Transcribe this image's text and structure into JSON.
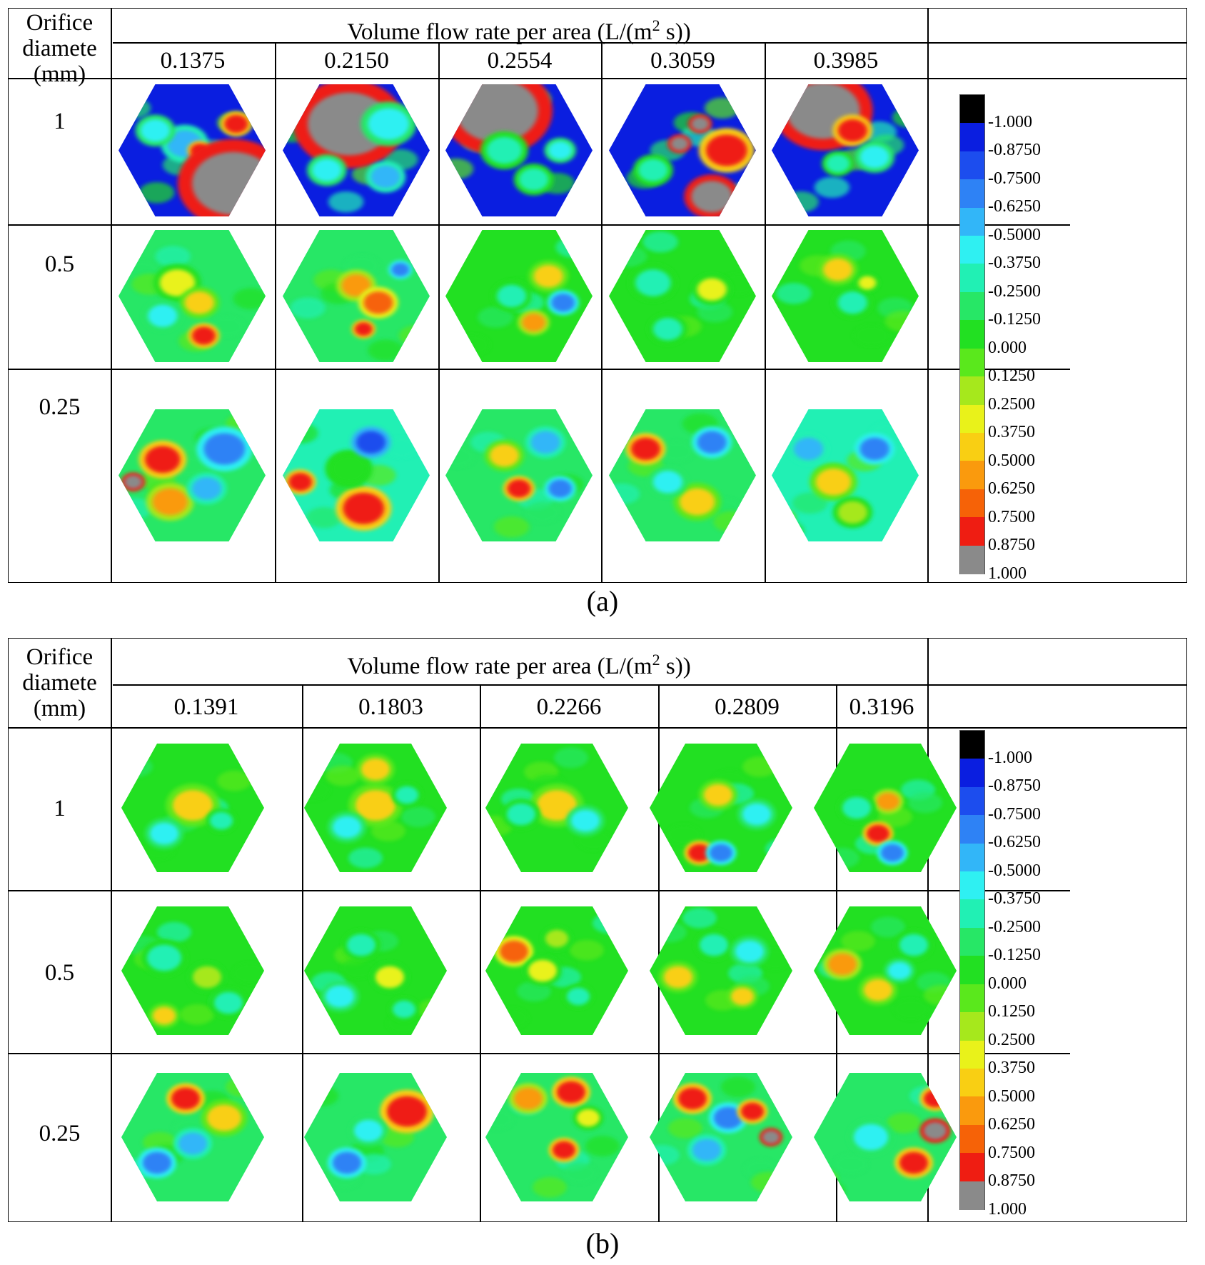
{
  "colors": {
    "scale": [
      "#000000",
      "#0a1ee0",
      "#1c4dee",
      "#2e82f5",
      "#32b6f8",
      "#2ff0f2",
      "#21f0b4",
      "#27e766",
      "#22e022",
      "#5ae81c",
      "#a6e81c",
      "#e9f21a",
      "#f9cf13",
      "#fa9a0d",
      "#f66207",
      "#ef1d12",
      "#8a8a8a"
    ],
    "border": "#000000"
  },
  "colorbar": {
    "labels": [
      "-1.000",
      "-0.8750",
      "-0.7500",
      "-0.6250",
      "-0.5000",
      "-0.3750",
      "-0.2500",
      "-0.1250",
      "0.000",
      "0.1250",
      "0.2500",
      "0.3750",
      "0.5000",
      "0.6250",
      "0.7500",
      "0.8750",
      "1.000"
    ]
  },
  "panel_a": {
    "header_left": [
      "Orifice",
      "diamete",
      "(mm)"
    ],
    "header_title_pre": "Volume flow rate per area (L/(m",
    "header_title_sup": "2",
    "header_title_post": " s))",
    "flow_rates": [
      "0.1375",
      "0.2150",
      "0.2554",
      "0.3059",
      "0.3985"
    ],
    "orifice_diameters": [
      "1",
      "0.5",
      "0.25"
    ],
    "caption": "(a)"
  },
  "panel_b": {
    "header_left": [
      "Orifice",
      "diamete",
      "(mm)"
    ],
    "header_title_pre": "Volume flow rate per area (L/(m",
    "header_title_sup": "2",
    "header_title_post": " s))",
    "flow_rates": [
      "0.1391",
      "0.1803",
      "0.2266",
      "0.2809",
      "0.3196"
    ],
    "orifice_diameters": [
      "1",
      "0.5",
      "0.25"
    ],
    "caption": "(b)"
  },
  "maps": {
    "a": [
      [
        {
          "bg": 1,
          "blobs": [
            [
              0.45,
              0.45,
              0.12,
              4
            ],
            [
              0.55,
              0.5,
              0.06,
              15
            ],
            [
              0.78,
              0.75,
              0.28,
              16
            ],
            [
              0.8,
              0.3,
              0.08,
              15
            ],
            [
              0.25,
              0.35,
              0.1,
              5
            ]
          ]
        },
        {
          "bg": 1,
          "blobs": [
            [
              0.45,
              0.3,
              0.28,
              16
            ],
            [
              0.72,
              0.3,
              0.14,
              5
            ],
            [
              0.3,
              0.65,
              0.1,
              5
            ],
            [
              0.7,
              0.7,
              0.1,
              4
            ]
          ]
        },
        {
          "bg": 1,
          "blobs": [
            [
              0.35,
              0.2,
              0.28,
              16
            ],
            [
              0.4,
              0.5,
              0.12,
              6
            ],
            [
              0.6,
              0.72,
              0.1,
              6
            ],
            [
              0.78,
              0.5,
              0.08,
              5
            ]
          ]
        },
        {
          "bg": 1,
          "blobs": [
            [
              0.62,
              0.3,
              0.06,
              16
            ],
            [
              0.48,
              0.45,
              0.06,
              16
            ],
            [
              0.8,
              0.5,
              0.14,
              15
            ],
            [
              0.7,
              0.85,
              0.14,
              16
            ],
            [
              0.3,
              0.65,
              0.1,
              6
            ]
          ]
        },
        {
          "bg": 1,
          "blobs": [
            [
              0.35,
              0.2,
              0.25,
              16
            ],
            [
              0.55,
              0.35,
              0.1,
              15
            ],
            [
              0.7,
              0.55,
              0.1,
              5
            ],
            [
              0.45,
              0.6,
              0.08,
              6
            ]
          ]
        }
      ],
      [
        {
          "bg": 7,
          "blobs": [
            [
              0.4,
              0.4,
              0.12,
              11
            ],
            [
              0.55,
              0.55,
              0.1,
              12
            ],
            [
              0.58,
              0.8,
              0.08,
              15
            ],
            [
              0.3,
              0.65,
              0.1,
              5
            ]
          ]
        },
        {
          "bg": 7,
          "blobs": [
            [
              0.5,
              0.42,
              0.1,
              13
            ],
            [
              0.65,
              0.55,
              0.1,
              14
            ],
            [
              0.55,
              0.75,
              0.06,
              15
            ],
            [
              0.8,
              0.3,
              0.06,
              3
            ]
          ]
        },
        {
          "bg": 8,
          "blobs": [
            [
              0.7,
              0.35,
              0.1,
              12
            ],
            [
              0.45,
              0.5,
              0.1,
              6
            ],
            [
              0.8,
              0.55,
              0.08,
              3
            ],
            [
              0.6,
              0.7,
              0.08,
              13
            ]
          ]
        },
        {
          "bg": 8,
          "blobs": [
            [
              0.3,
              0.4,
              0.12,
              6
            ],
            [
              0.7,
              0.45,
              0.1,
              11
            ],
            [
              0.4,
              0.75,
              0.1,
              6
            ]
          ]
        },
        {
          "bg": 8,
          "blobs": [
            [
              0.45,
              0.3,
              0.1,
              12
            ],
            [
              0.55,
              0.55,
              0.1,
              6
            ],
            [
              0.65,
              0.4,
              0.06,
              11
            ]
          ]
        }
      ],
      [
        {
          "bg": 7,
          "blobs": [
            [
              0.3,
              0.38,
              0.12,
              15
            ],
            [
              0.72,
              0.3,
              0.14,
              3
            ],
            [
              0.35,
              0.7,
              0.12,
              13
            ],
            [
              0.6,
              0.6,
              0.1,
              4
            ],
            [
              0.1,
              0.55,
              0.06,
              16
            ]
          ]
        },
        {
          "bg": 6,
          "blobs": [
            [
              0.55,
              0.75,
              0.14,
              15
            ],
            [
              0.45,
              0.45,
              0.12,
              8
            ],
            [
              0.12,
              0.55,
              0.08,
              15
            ],
            [
              0.6,
              0.25,
              0.1,
              2
            ]
          ]
        },
        {
          "bg": 7,
          "blobs": [
            [
              0.4,
              0.35,
              0.1,
              12
            ],
            [
              0.5,
              0.6,
              0.08,
              15
            ],
            [
              0.68,
              0.25,
              0.1,
              4
            ],
            [
              0.78,
              0.6,
              0.08,
              3
            ]
          ]
        },
        {
          "bg": 7,
          "blobs": [
            [
              0.25,
              0.3,
              0.1,
              15
            ],
            [
              0.7,
              0.25,
              0.1,
              3
            ],
            [
              0.6,
              0.7,
              0.12,
              12
            ],
            [
              0.4,
              0.55,
              0.1,
              5
            ]
          ]
        },
        {
          "bg": 6,
          "blobs": [
            [
              0.42,
              0.55,
              0.12,
              12
            ],
            [
              0.7,
              0.3,
              0.1,
              3
            ],
            [
              0.25,
              0.3,
              0.1,
              4
            ],
            [
              0.55,
              0.78,
              0.1,
              10
            ]
          ]
        }
      ]
    ],
    "b": [
      [
        {
          "bg": 8,
          "blobs": [
            [
              0.5,
              0.48,
              0.07,
              15
            ],
            [
              0.5,
              0.48,
              0.14,
              12
            ],
            [
              0.3,
              0.7,
              0.1,
              5
            ],
            [
              0.7,
              0.6,
              0.08,
              6
            ]
          ]
        },
        {
          "bg": 8,
          "blobs": [
            [
              0.5,
              0.48,
              0.07,
              15
            ],
            [
              0.5,
              0.48,
              0.14,
              12
            ],
            [
              0.5,
              0.2,
              0.1,
              12
            ],
            [
              0.3,
              0.65,
              0.1,
              5
            ],
            [
              0.72,
              0.4,
              0.08,
              6
            ]
          ]
        },
        {
          "bg": 8,
          "blobs": [
            [
              0.5,
              0.48,
              0.07,
              15
            ],
            [
              0.5,
              0.48,
              0.14,
              12
            ],
            [
              0.25,
              0.55,
              0.1,
              6
            ],
            [
              0.7,
              0.6,
              0.1,
              5
            ]
          ]
        },
        {
          "bg": 8,
          "blobs": [
            [
              0.48,
              0.4,
              0.1,
              12
            ],
            [
              0.35,
              0.85,
              0.08,
              15
            ],
            [
              0.5,
              0.85,
              0.08,
              3
            ],
            [
              0.75,
              0.55,
              0.1,
              5
            ]
          ]
        },
        {
          "bg": 8,
          "blobs": [
            [
              0.52,
              0.45,
              0.08,
              13
            ],
            [
              0.45,
              0.7,
              0.08,
              15
            ],
            [
              0.55,
              0.85,
              0.08,
              3
            ],
            [
              0.3,
              0.5,
              0.1,
              6
            ]
          ]
        }
      ],
      [
        {
          "bg": 8,
          "blobs": [
            [
              0.3,
              0.4,
              0.12,
              6
            ],
            [
              0.6,
              0.55,
              0.1,
              10
            ],
            [
              0.3,
              0.85,
              0.08,
              12
            ],
            [
              0.75,
              0.75,
              0.1,
              6
            ]
          ]
        },
        {
          "bg": 8,
          "blobs": [
            [
              0.4,
              0.3,
              0.1,
              6
            ],
            [
              0.6,
              0.55,
              0.1,
              11
            ],
            [
              0.25,
              0.7,
              0.1,
              5
            ],
            [
              0.7,
              0.8,
              0.08,
              6
            ]
          ]
        },
        {
          "bg": 8,
          "blobs": [
            [
              0.2,
              0.35,
              0.1,
              14
            ],
            [
              0.4,
              0.5,
              0.1,
              11
            ],
            [
              0.65,
              0.7,
              0.08,
              6
            ],
            [
              0.5,
              0.25,
              0.08,
              10
            ]
          ]
        },
        {
          "bg": 8,
          "blobs": [
            [
              0.2,
              0.55,
              0.1,
              12
            ],
            [
              0.45,
              0.3,
              0.1,
              6
            ],
            [
              0.7,
              0.35,
              0.1,
              5
            ],
            [
              0.65,
              0.7,
              0.08,
              12
            ]
          ]
        },
        {
          "bg": 8,
          "blobs": [
            [
              0.2,
              0.45,
              0.1,
              13
            ],
            [
              0.45,
              0.65,
              0.1,
              12
            ],
            [
              0.7,
              0.3,
              0.1,
              6
            ],
            [
              0.6,
              0.5,
              0.08,
              5
            ]
          ]
        }
      ],
      [
        {
          "bg": 7,
          "blobs": [
            [
              0.45,
              0.2,
              0.1,
              15
            ],
            [
              0.72,
              0.35,
              0.12,
              12
            ],
            [
              0.5,
              0.55,
              0.1,
              4
            ],
            [
              0.25,
              0.7,
              0.1,
              3
            ]
          ]
        },
        {
          "bg": 7,
          "blobs": [
            [
              0.72,
              0.3,
              0.08,
              16
            ],
            [
              0.72,
              0.3,
              0.14,
              15
            ],
            [
              0.45,
              0.45,
              0.1,
              5
            ],
            [
              0.3,
              0.7,
              0.1,
              3
            ]
          ]
        },
        {
          "bg": 7,
          "blobs": [
            [
              0.6,
              0.15,
              0.1,
              15
            ],
            [
              0.3,
              0.2,
              0.1,
              13
            ],
            [
              0.55,
              0.6,
              0.08,
              15
            ],
            [
              0.72,
              0.35,
              0.08,
              11
            ]
          ]
        },
        {
          "bg": 7,
          "blobs": [
            [
              0.3,
              0.2,
              0.1,
              15
            ],
            [
              0.55,
              0.35,
              0.1,
              3
            ],
            [
              0.72,
              0.3,
              0.08,
              15
            ],
            [
              0.85,
              0.5,
              0.06,
              16
            ],
            [
              0.4,
              0.6,
              0.1,
              4
            ]
          ]
        },
        {
          "bg": 7,
          "blobs": [
            [
              0.85,
              0.2,
              0.08,
              15
            ],
            [
              0.85,
              0.45,
              0.08,
              16
            ],
            [
              0.7,
              0.7,
              0.1,
              15
            ],
            [
              0.4,
              0.5,
              0.12,
              5
            ]
          ]
        }
      ]
    ]
  }
}
